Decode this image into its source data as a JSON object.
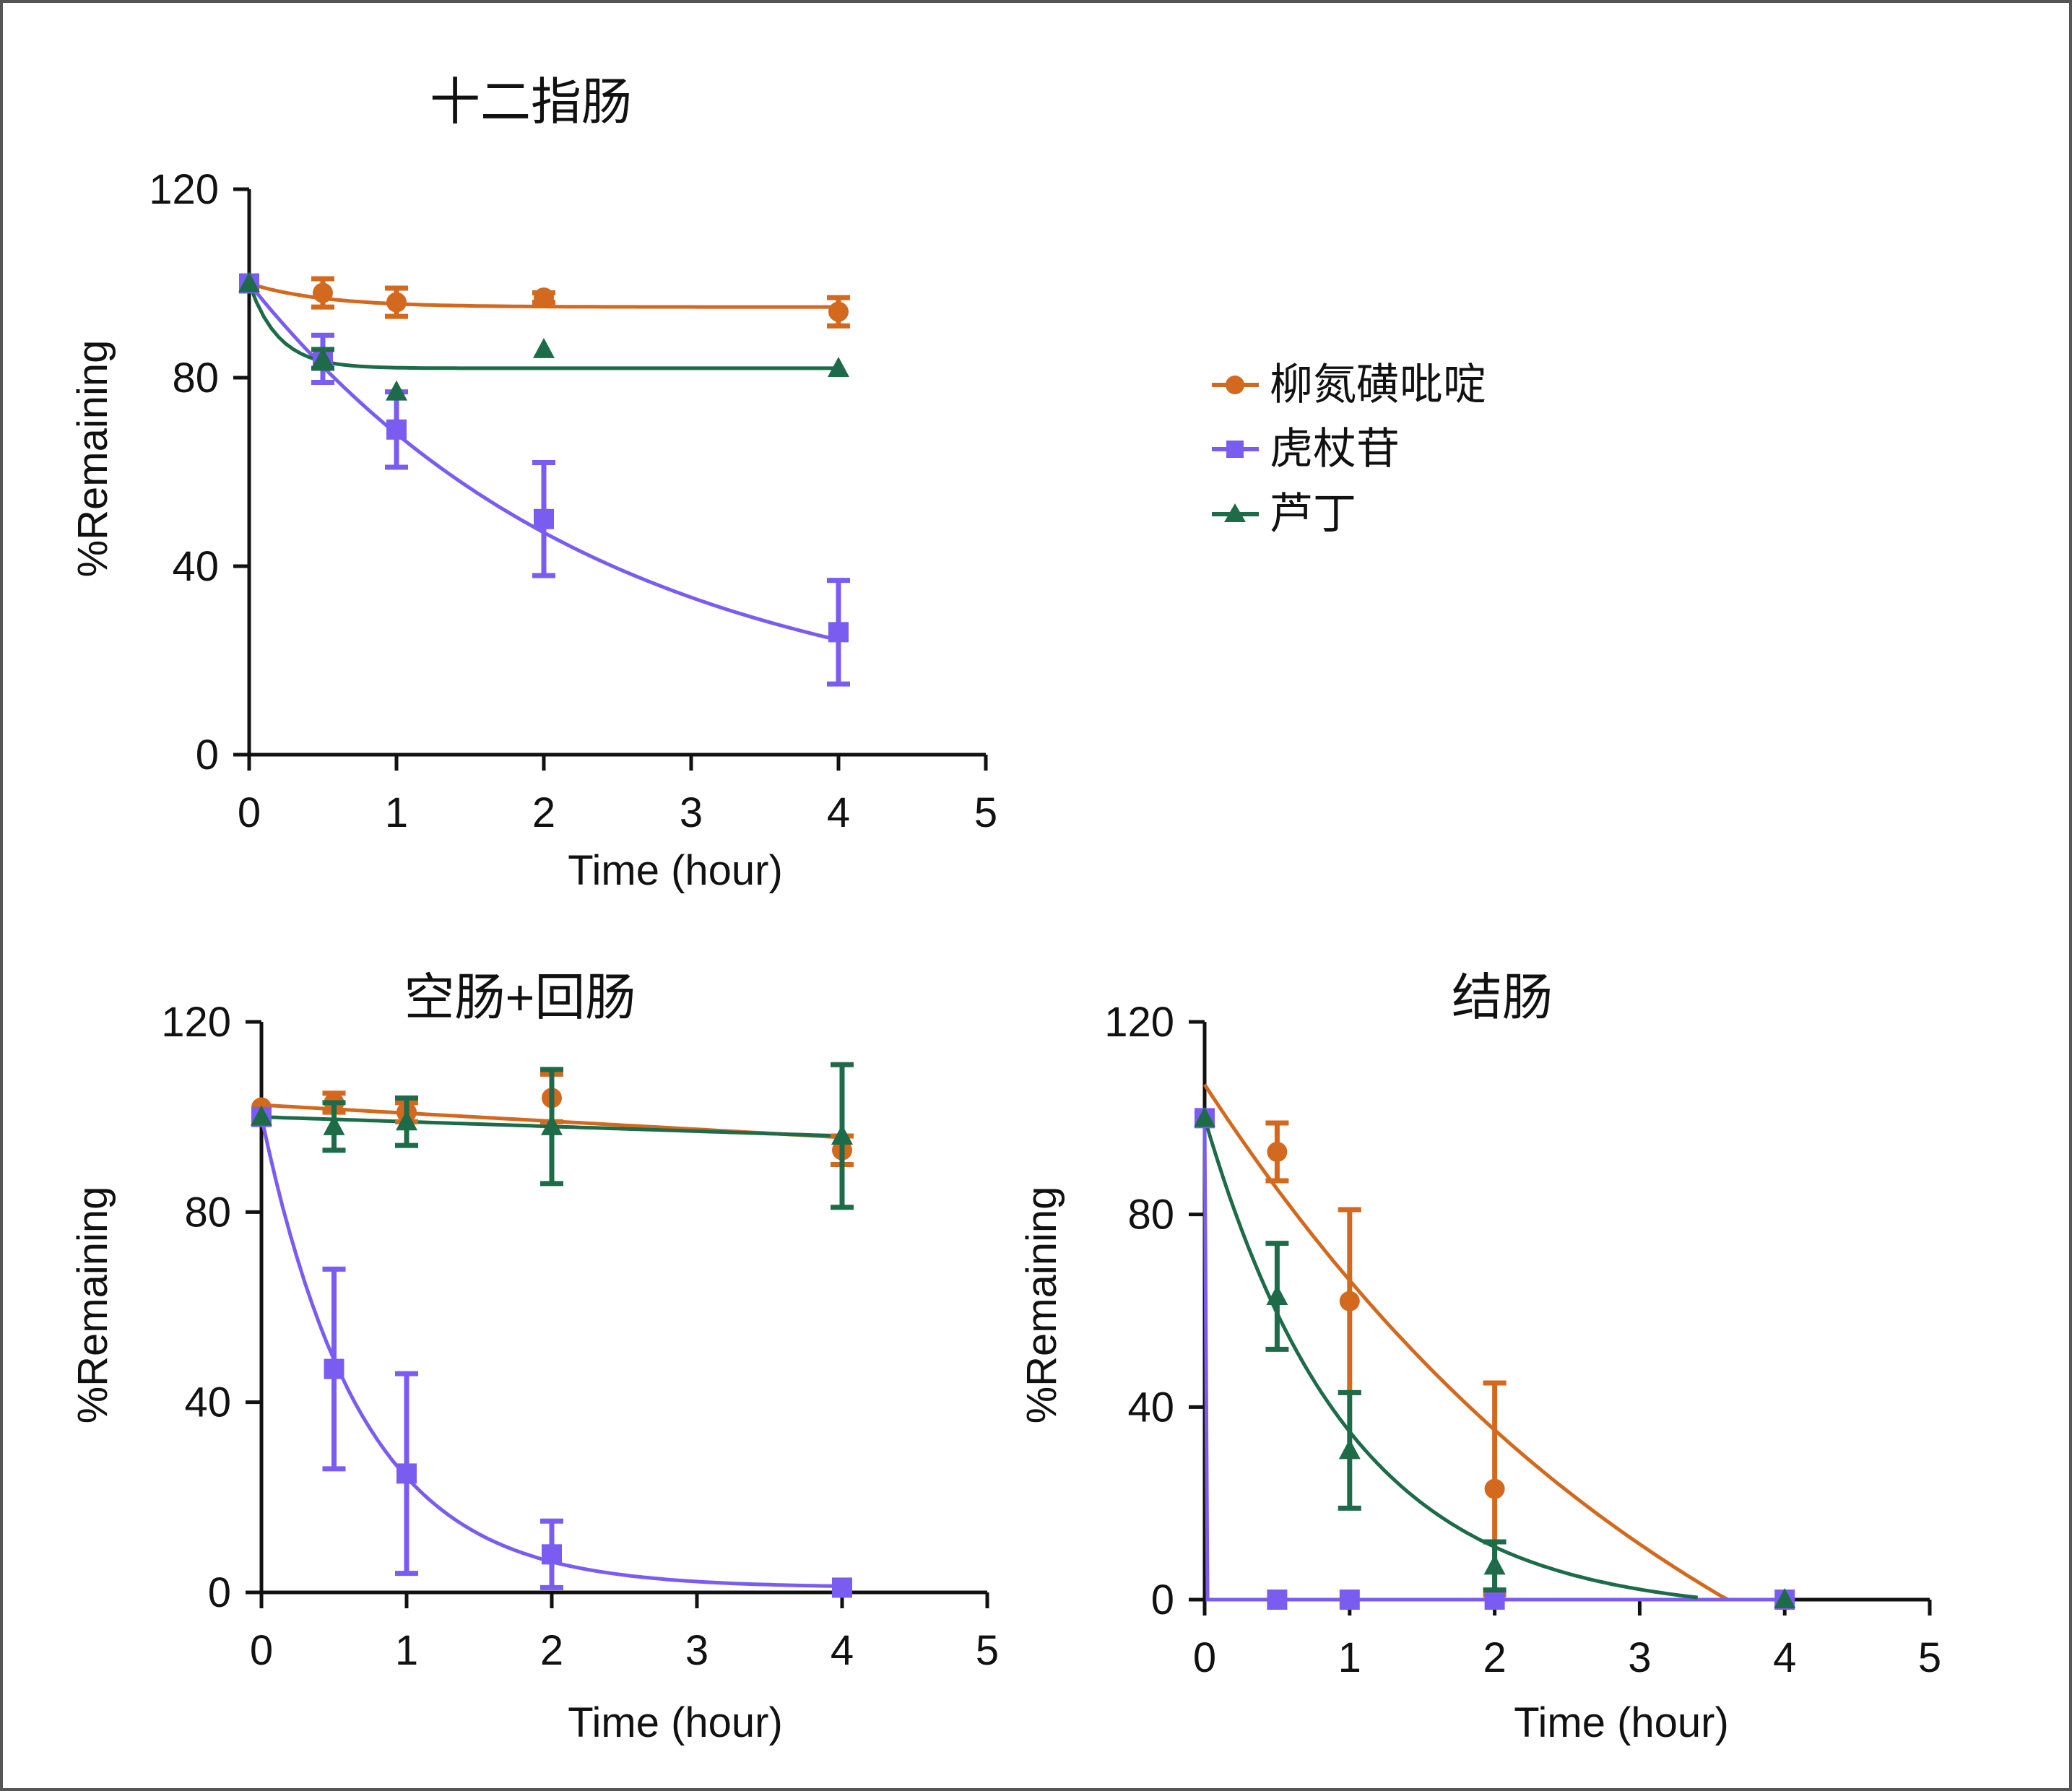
{
  "colors": {
    "liu": "#D2691E",
    "hu": "#7B5CF0",
    "lu": "#1E6B4A",
    "axis": "#111111",
    "frame": "#555555"
  },
  "legend": [
    {
      "label": "柳氮磺吡啶",
      "marker": "circle",
      "color_key": "liu"
    },
    {
      "label": "虎杖苷",
      "marker": "square",
      "color_key": "hu"
    },
    {
      "label": "芦丁",
      "marker": "triangle",
      "color_key": "lu"
    }
  ],
  "chart_data": [
    {
      "type": "scatter",
      "title": "十二指肠",
      "xlabel": "Time (hour)",
      "ylabel": "%Remaining",
      "xlim": [
        0,
        5
      ],
      "ylim": [
        0,
        120
      ],
      "xticks": [
        0,
        1,
        2,
        3,
        4,
        5
      ],
      "yticks": [
        0,
        40,
        80,
        120
      ],
      "xtick_labels": [
        "0",
        "1",
        "2",
        "3",
        "4",
        "5"
      ],
      "ytick_labels": [
        "0",
        "40",
        "80",
        "120"
      ],
      "series": [
        {
          "name": "柳氮磺吡啶",
          "color_key": "liu",
          "marker": "circle",
          "points": [
            [
              0,
              100
            ],
            [
              0.5,
              98
            ],
            [
              1,
              96
            ],
            [
              2,
              97
            ],
            [
              4,
              94
            ]
          ],
          "errors": [
            0,
            3,
            3,
            1,
            3
          ],
          "fit": {
            "model": "exp_plateau",
            "y0": 100,
            "plateau": 95,
            "k": 2.0
          }
        },
        {
          "name": "虎杖苷",
          "color_key": "hu",
          "marker": "square",
          "points": [
            [
              0,
              100
            ],
            [
              0.5,
              84
            ],
            [
              1,
              69
            ],
            [
              2,
              50
            ],
            [
              4,
              26
            ]
          ],
          "errors": [
            0,
            5,
            8,
            12,
            11
          ],
          "fit": {
            "model": "exp_plateau",
            "y0": 100,
            "plateau": 7,
            "k": 0.42
          }
        },
        {
          "name": "芦丁",
          "color_key": "lu",
          "marker": "triangle",
          "points": [
            [
              0,
              100
            ],
            [
              0.5,
              84
            ],
            [
              1,
              77
            ],
            [
              2,
              86
            ],
            [
              4,
              82
            ]
          ],
          "errors": [
            0,
            2,
            0,
            0,
            0
          ],
          "fit": {
            "model": "exp_plateau",
            "y0": 100,
            "plateau": 82,
            "k": 5.0
          }
        }
      ]
    },
    {
      "type": "scatter",
      "title": "空肠+回肠",
      "xlabel": "Time (hour)",
      "ylabel": "%Remaining",
      "xlim": [
        0,
        5
      ],
      "ylim": [
        0,
        120
      ],
      "xticks": [
        0,
        1,
        2,
        3,
        4,
        5
      ],
      "yticks": [
        0,
        40,
        80,
        120
      ],
      "xtick_labels": [
        "0",
        "1",
        "2",
        "3",
        "4",
        "5"
      ],
      "ytick_labels": [
        "0",
        "40",
        "80",
        "120"
      ],
      "series": [
        {
          "name": "柳氮磺吡啶",
          "color_key": "liu",
          "marker": "circle",
          "points": [
            [
              0,
              102
            ],
            [
              0.5,
              103
            ],
            [
              1,
              101
            ],
            [
              2,
              104
            ],
            [
              4,
              93
            ]
          ],
          "errors": [
            0,
            2,
            2,
            5,
            3
          ],
          "fit": {
            "model": "linear",
            "a": 102.5,
            "b": -1.7,
            "x0": 0,
            "x1": 4
          }
        },
        {
          "name": "虎杖苷",
          "color_key": "hu",
          "marker": "square",
          "points": [
            [
              0,
              100
            ],
            [
              0.5,
              47
            ],
            [
              1,
              25
            ],
            [
              2,
              8
            ],
            [
              4,
              1
            ]
          ],
          "errors": [
            0,
            21,
            21,
            7,
            0
          ],
          "fit": {
            "model": "exp_plateau",
            "y0": 100,
            "plateau": 1,
            "k": 1.45
          }
        },
        {
          "name": "芦丁",
          "color_key": "lu",
          "marker": "triangle",
          "points": [
            [
              0,
              100
            ],
            [
              0.5,
              98
            ],
            [
              1,
              99
            ],
            [
              2,
              98
            ],
            [
              4,
              96
            ]
          ],
          "errors": [
            0,
            5,
            5,
            12,
            15
          ],
          "fit": {
            "model": "linear",
            "a": 100,
            "b": -1.0,
            "x0": 0,
            "x1": 4
          }
        }
      ]
    },
    {
      "type": "scatter",
      "title": "结肠",
      "xlabel": "Time (hour)",
      "ylabel": "%Remaining",
      "xlim": [
        0,
        5
      ],
      "ylim": [
        0,
        120
      ],
      "xticks": [
        0,
        1,
        2,
        3,
        4,
        5
      ],
      "yticks": [
        0,
        40,
        80,
        120
      ],
      "xtick_labels": [
        "0",
        "1",
        "2",
        "3",
        "4",
        "5"
      ],
      "ytick_labels": [
        "0",
        "40",
        "80",
        "120"
      ],
      "series": [
        {
          "name": "柳氮磺吡啶",
          "color_key": "liu",
          "marker": "circle",
          "points": [
            [
              0.5,
              93
            ],
            [
              1,
              62
            ],
            [
              2,
              23
            ],
            [
              4,
              0
            ]
          ],
          "errors": [
            6,
            19,
            22,
            0
          ],
          "fit": {
            "model": "clamped_exp",
            "A": 172,
            "B": 65,
            "k": 0.27,
            "x0": 0,
            "x1": 3.75
          }
        },
        {
          "name": "虎杖苷",
          "color_key": "hu",
          "marker": "square",
          "points": [
            [
              0,
              100
            ],
            [
              0.5,
              0
            ],
            [
              1,
              0
            ],
            [
              2,
              0
            ],
            [
              4,
              0
            ]
          ],
          "errors": [
            0,
            0,
            0,
            0,
            0
          ],
          "fit": {
            "model": "polyline",
            "pts": [
              [
                0,
                100
              ],
              [
                0.02,
                0
              ],
              [
                4,
                0
              ]
            ]
          }
        },
        {
          "name": "芦丁",
          "color_key": "lu",
          "marker": "triangle",
          "points": [
            [
              0,
              100
            ],
            [
              0.5,
              63
            ],
            [
              1,
              31
            ],
            [
              2,
              7
            ],
            [
              4,
              0
            ]
          ],
          "errors": [
            0,
            11,
            12,
            5,
            0
          ],
          "fit": {
            "model": "clamped_exp",
            "A": 103,
            "B": 3,
            "k": 1.0,
            "x0": 0,
            "x1": 3.4
          }
        }
      ]
    }
  ]
}
